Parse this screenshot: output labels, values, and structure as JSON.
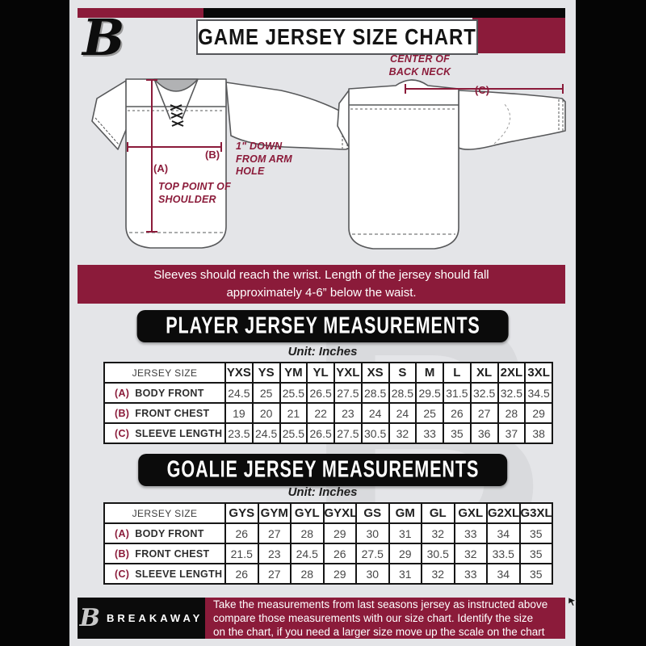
{
  "header": {
    "title": "GAME JERSEY SIZE CHART",
    "logo_letter": "B"
  },
  "diagram": {
    "a_key": "(A)",
    "a_text": "TOP POINT OF SHOULDER",
    "b_key": "(B)",
    "b_text": "1\" DOWN FROM ARM HOLE",
    "c_key": "(C)",
    "c_text": "CENTER OF BACK NECK"
  },
  "banner": {
    "lines": {
      "0": "Sleeves should reach the wrist. Length of the jersey should fall",
      "1": "approximately 4-6” below the waist."
    }
  },
  "player_table": {
    "section_title": "PLAYER JERSEY MEASUREMENTS",
    "unit": "Unit: Inches",
    "corner": "JERSEY SIZE",
    "sizes": [
      "YXS",
      "YS",
      "YM",
      "YL",
      "YXL",
      "XS",
      "S",
      "M",
      "L",
      "XL",
      "2XL",
      "3XL"
    ],
    "rows": [
      {
        "key": "(A)",
        "label": "BODY FRONT",
        "values": [
          "24.5",
          "25",
          "25.5",
          "26.5",
          "27.5",
          "28.5",
          "28.5",
          "29.5",
          "31.5",
          "32.5",
          "32.5",
          "34.5"
        ]
      },
      {
        "key": "(B)",
        "label": "FRONT CHEST",
        "values": [
          "19",
          "20",
          "21",
          "22",
          "23",
          "24",
          "24",
          "25",
          "26",
          "27",
          "28",
          "29"
        ]
      },
      {
        "key": "(C)",
        "label": "SLEEVE LENGTH",
        "values": [
          "23.5",
          "24.5",
          "25.5",
          "26.5",
          "27.5",
          "30.5",
          "32",
          "33",
          "35",
          "36",
          "37",
          "38"
        ]
      }
    ]
  },
  "goalie_table": {
    "section_title": "GOALIE JERSEY MEASUREMENTS",
    "unit": "Unit: Inches",
    "corner": "JERSEY SIZE",
    "sizes": [
      "GYS",
      "GYM",
      "GYL",
      "GYXL",
      "GS",
      "GM",
      "GL",
      "GXL",
      "G2XL",
      "G3XL"
    ],
    "rows": [
      {
        "key": "(A)",
        "label": "BODY FRONT",
        "values": [
          "26",
          "27",
          "28",
          "29",
          "30",
          "31",
          "32",
          "33",
          "34",
          "35"
        ]
      },
      {
        "key": "(B)",
        "label": "FRONT CHEST",
        "values": [
          "21.5",
          "23",
          "24.5",
          "26",
          "27.5",
          "29",
          "30.5",
          "32",
          "33.5",
          "35"
        ]
      },
      {
        "key": "(C)",
        "label": "SLEEVE LENGTH",
        "values": [
          "26",
          "27",
          "28",
          "29",
          "30",
          "31",
          "32",
          "33",
          "34",
          "35"
        ]
      }
    ]
  },
  "footer": {
    "logo_letter": "B",
    "brand": "BREAKAWAY",
    "lines": {
      "0": "Take the measurements from last seasons jersey as instructed above",
      "1": "compare those measurements  with our size chart. Identify the size",
      "2": "on the chart, if you need a larger size move up the scale on the chart"
    }
  },
  "colors": {
    "maroon": "#8B1B3A",
    "black": "#0b0b0b",
    "background": "#e4e5e8",
    "watermark": "#d9dadd"
  }
}
